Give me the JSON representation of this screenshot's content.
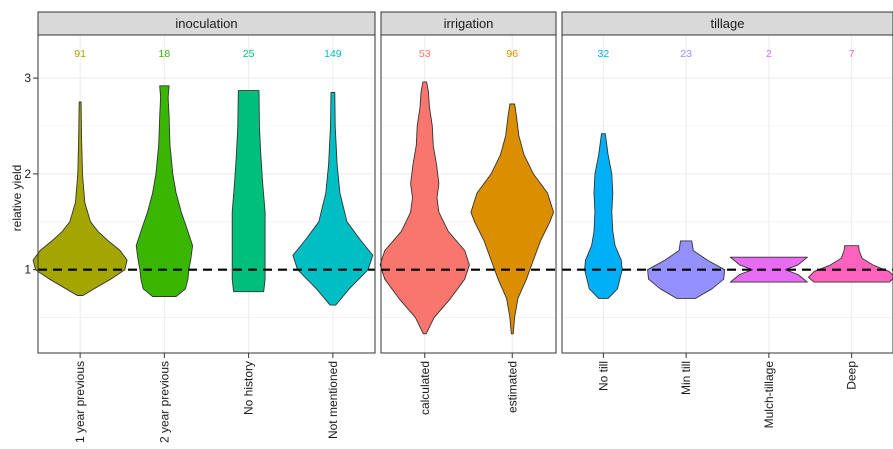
{
  "chart_data": {
    "type": "violin",
    "ylabel": "relative yield",
    "ylim": [
      0.13,
      3.45
    ],
    "yticks": [
      1,
      2,
      3
    ],
    "reference_line": 1,
    "grid": true,
    "panels": [
      {
        "strip": "inoculation",
        "groups": [
          {
            "category": "1 year previous",
            "n": "91",
            "color": "#A3A500",
            "min": 0.73,
            "max": 2.75,
            "density": [
              [
                0.73,
                0.06
              ],
              [
                0.8,
                0.3
              ],
              [
                0.9,
                0.65
              ],
              [
                1.0,
                0.95
              ],
              [
                1.1,
                1.0
              ],
              [
                1.2,
                0.85
              ],
              [
                1.3,
                0.6
              ],
              [
                1.4,
                0.38
              ],
              [
                1.5,
                0.22
              ],
              [
                1.7,
                0.1
              ],
              [
                2.0,
                0.05
              ],
              [
                2.4,
                0.03
              ],
              [
                2.75,
                0.02
              ]
            ]
          },
          {
            "category": "2 year previous",
            "n": "18",
            "color": "#39B600",
            "min": 0.72,
            "max": 2.92,
            "density": [
              [
                0.72,
                0.25
              ],
              [
                0.8,
                0.45
              ],
              [
                0.9,
                0.5
              ],
              [
                1.0,
                0.52
              ],
              [
                1.1,
                0.56
              ],
              [
                1.25,
                0.6
              ],
              [
                1.4,
                0.5
              ],
              [
                1.6,
                0.36
              ],
              [
                1.8,
                0.25
              ],
              [
                2.0,
                0.18
              ],
              [
                2.3,
                0.12
              ],
              [
                2.6,
                0.1
              ],
              [
                2.8,
                0.08
              ],
              [
                2.92,
                0.1
              ]
            ]
          },
          {
            "category": "No history",
            "n": "25",
            "color": "#00BF7D",
            "min": 0.77,
            "max": 2.87,
            "density": [
              [
                0.77,
                0.32
              ],
              [
                0.9,
                0.35
              ],
              [
                1.0,
                0.35
              ],
              [
                1.3,
                0.35
              ],
              [
                1.6,
                0.35
              ],
              [
                1.9,
                0.3
              ],
              [
                2.2,
                0.26
              ],
              [
                2.5,
                0.23
              ],
              [
                2.87,
                0.22
              ]
            ]
          },
          {
            "category": "Not mentioned",
            "n": "149",
            "color": "#00BFC4",
            "min": 0.63,
            "max": 2.85,
            "density": [
              [
                0.63,
                0.06
              ],
              [
                0.8,
                0.35
              ],
              [
                1.0,
                0.75
              ],
              [
                1.15,
                0.85
              ],
              [
                1.3,
                0.6
              ],
              [
                1.5,
                0.3
              ],
              [
                1.8,
                0.15
              ],
              [
                2.1,
                0.09
              ],
              [
                2.5,
                0.05
              ],
              [
                2.85,
                0.04
              ]
            ]
          }
        ]
      },
      {
        "strip": "irrigation",
        "groups": [
          {
            "category": "calculated",
            "n": "53",
            "color": "#F8766D",
            "min": 0.33,
            "max": 2.96,
            "density": [
              [
                0.33,
                0.03
              ],
              [
                0.5,
                0.2
              ],
              [
                0.7,
                0.55
              ],
              [
                0.9,
                0.85
              ],
              [
                1.05,
                0.95
              ],
              [
                1.2,
                0.85
              ],
              [
                1.4,
                0.5
              ],
              [
                1.6,
                0.3
              ],
              [
                1.75,
                0.26
              ],
              [
                1.9,
                0.3
              ],
              [
                2.1,
                0.25
              ],
              [
                2.3,
                0.18
              ],
              [
                2.5,
                0.16
              ],
              [
                2.7,
                0.1
              ],
              [
                2.85,
                0.08
              ],
              [
                2.96,
                0.04
              ]
            ]
          },
          {
            "category": "estimated",
            "n": "96",
            "color": "#DB8E00",
            "min": 0.33,
            "max": 2.73,
            "density": [
              [
                0.33,
                0.02
              ],
              [
                0.5,
                0.05
              ],
              [
                0.7,
                0.12
              ],
              [
                0.9,
                0.3
              ],
              [
                1.1,
                0.45
              ],
              [
                1.3,
                0.6
              ],
              [
                1.5,
                0.8
              ],
              [
                1.6,
                0.88
              ],
              [
                1.8,
                0.75
              ],
              [
                2.0,
                0.45
              ],
              [
                2.2,
                0.25
              ],
              [
                2.4,
                0.14
              ],
              [
                2.6,
                0.09
              ],
              [
                2.73,
                0.05
              ]
            ]
          }
        ]
      },
      {
        "strip": "tillage",
        "groups": [
          {
            "category": "No till",
            "n": "32",
            "color": "#00B0F6",
            "min": 0.7,
            "max": 2.42,
            "density": [
              [
                0.7,
                0.1
              ],
              [
                0.8,
                0.3
              ],
              [
                1.0,
                0.4
              ],
              [
                1.1,
                0.38
              ],
              [
                1.25,
                0.25
              ],
              [
                1.4,
                0.2
              ],
              [
                1.6,
                0.18
              ],
              [
                1.8,
                0.2
              ],
              [
                2.0,
                0.18
              ],
              [
                2.2,
                0.1
              ],
              [
                2.42,
                0.04
              ]
            ]
          },
          {
            "category": "Min till",
            "n": "23",
            "color": "#9590FF",
            "min": 0.7,
            "max": 1.3,
            "density": [
              [
                0.7,
                0.2
              ],
              [
                0.8,
                0.55
              ],
              [
                0.9,
                0.8
              ],
              [
                1.0,
                0.82
              ],
              [
                1.1,
                0.45
              ],
              [
                1.2,
                0.15
              ],
              [
                1.3,
                0.12
              ]
            ]
          },
          {
            "category": "Mulch-tillage",
            "n": "2",
            "color": "#E76BF3",
            "min": 0.87,
            "max": 1.13,
            "density": [
              [
                0.87,
                0.82
              ],
              [
                0.95,
                0.62
              ],
              [
                1.0,
                0.35
              ],
              [
                1.05,
                0.62
              ],
              [
                1.13,
                0.82
              ]
            ]
          },
          {
            "category": "Deep",
            "n": "7",
            "color": "#FF62BC",
            "min": 0.87,
            "max": 1.25,
            "density": [
              [
                0.87,
                0.8
              ],
              [
                0.92,
                0.92
              ],
              [
                0.98,
                0.8
              ],
              [
                1.05,
                0.45
              ],
              [
                1.12,
                0.22
              ],
              [
                1.2,
                0.16
              ],
              [
                1.25,
                0.15
              ]
            ]
          }
        ]
      }
    ]
  }
}
